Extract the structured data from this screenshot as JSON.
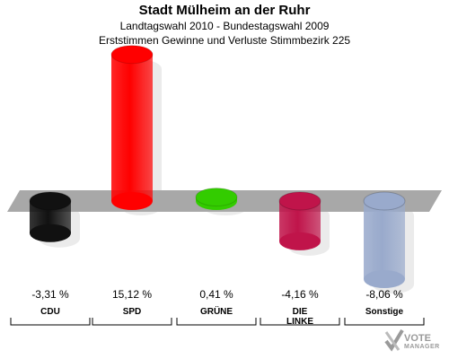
{
  "chart_data": {
    "type": "bar",
    "title": "Stadt Mülheim an der Ruhr",
    "subtitles": [
      "Landtagswahl 2010 - Bundestagswahl 2009",
      "Erststimmen Gewinne und Verluste Stimmbezirk 225"
    ],
    "categories": [
      "CDU",
      "SPD",
      "GRÜNE",
      "DIE LINKE",
      "Sonstige"
    ],
    "category_lines": [
      [
        "CDU"
      ],
      [
        "SPD"
      ],
      [
        "GRÜNE"
      ],
      [
        "DIE",
        "LINKE"
      ],
      [
        "Sonstige"
      ]
    ],
    "values": [
      -3.31,
      15.12,
      0.41,
      -4.16,
      -8.06
    ],
    "value_labels": [
      "-3,31 %",
      "15,12 %",
      "0,41 %",
      "-4,16 %",
      "-8,06 %"
    ],
    "colors": [
      "#111111",
      "#ff0000",
      "#33cc00",
      "#c0144a",
      "#99aacc"
    ],
    "ylim": [
      -10,
      16
    ],
    "grid": false
  },
  "logo": {
    "line1": "VOTE",
    "line2": "MANAGER"
  }
}
